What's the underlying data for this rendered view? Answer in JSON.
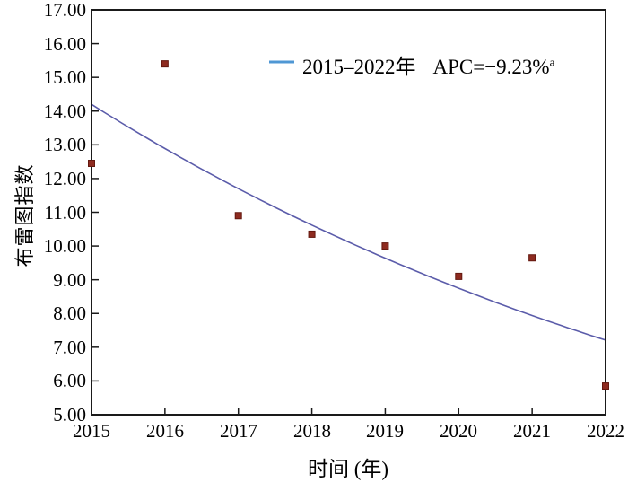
{
  "figure": {
    "background": "#ffffff"
  },
  "chart_data": {
    "type": "scatter",
    "title": "",
    "xlabel": "时间 (年)",
    "ylabel": "布雷图指数",
    "x": [
      2015,
      2016,
      2017,
      2018,
      2019,
      2020,
      2021,
      2022
    ],
    "series": [
      {
        "name": "布雷图指数",
        "type": "scatter",
        "marker": "square",
        "values": [
          12.45,
          15.4,
          10.9,
          10.35,
          10.0,
          9.1,
          9.65,
          5.85
        ]
      },
      {
        "name": "2015–2022年 APC=−9.23%a",
        "type": "line",
        "values": [
          14.2,
          12.89,
          11.7,
          10.62,
          9.64,
          8.75,
          7.94,
          7.21
        ]
      }
    ],
    "xlim": [
      2015,
      2022
    ],
    "ylim": [
      5,
      17
    ],
    "grid": false,
    "legend_position": "top-right-inside",
    "ytick_labels": [
      "17.00",
      "16.00",
      "15.00",
      "14.00",
      "13.00",
      "12.00",
      "11.00",
      "10.00",
      "9.00",
      "8.00",
      "7.00",
      "6.00",
      "5.00"
    ],
    "xtick_labels": [
      "2015",
      "2016",
      "2017",
      "2018",
      "2019",
      "2020",
      "2021",
      "2022"
    ],
    "legend": {
      "range": "2015–2022年",
      "apc": "APC=−9.23%",
      "superscript": "a"
    },
    "colors": {
      "axis": "#1a1a1a",
      "text": "#000000",
      "point": "#8e2b20",
      "point_border": "#63180f",
      "trend_line": "#5b5caa",
      "legend_line": "#4f97d4"
    }
  }
}
